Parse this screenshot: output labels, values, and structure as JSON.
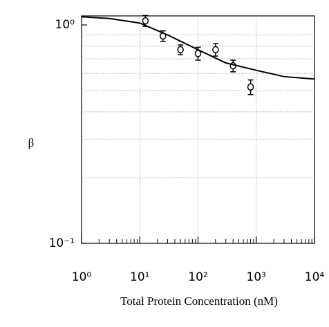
{
  "chart_data": {
    "type": "scatter",
    "xlabel": "Total Protein Concentration (nM)",
    "ylabel": "β",
    "xscale": "log",
    "yscale": "log",
    "xlim": [
      1,
      10000
    ],
    "ylim": [
      0.1,
      1.1
    ],
    "xticks": [
      {
        "value": 1,
        "label": "10⁰"
      },
      {
        "value": 10,
        "label": "10¹"
      },
      {
        "value": 100,
        "label": "10²"
      },
      {
        "value": 1000,
        "label": "10³"
      },
      {
        "value": 10000,
        "label": "10⁴"
      }
    ],
    "yticks": [
      {
        "value": 0.1,
        "label": "10⁻¹"
      },
      {
        "value": 1,
        "label": "10⁰"
      }
    ],
    "xminorticks": [
      2,
      3,
      4,
      5,
      6,
      7,
      8,
      9,
      20,
      30,
      40,
      50,
      60,
      70,
      80,
      90,
      200,
      300,
      400,
      500,
      600,
      700,
      800,
      900,
      2000,
      3000,
      4000,
      5000,
      6000,
      7000,
      8000,
      9000
    ],
    "yminorticks": [
      0.2,
      0.3,
      0.4,
      0.5,
      0.6,
      0.7,
      0.8,
      0.9
    ],
    "grid": true,
    "series": [
      {
        "type": "scatter",
        "color": "#000000",
        "x": [
          12.5,
          25,
          50,
          100,
          200,
          400,
          800
        ],
        "values": [
          1.045,
          0.89,
          0.77,
          0.74,
          0.77,
          0.65,
          0.52
        ],
        "errors": [
          0.06,
          0.05,
          0.04,
          0.05,
          0.05,
          0.04,
          0.04
        ]
      },
      {
        "type": "line",
        "color": "#000000",
        "x": [
          1,
          3,
          10,
          30,
          100,
          300,
          1000,
          3000,
          10000
        ],
        "values": [
          1.09,
          1.07,
          1.02,
          0.9,
          0.77,
          0.67,
          0.62,
          0.58,
          0.565
        ]
      }
    ]
  }
}
